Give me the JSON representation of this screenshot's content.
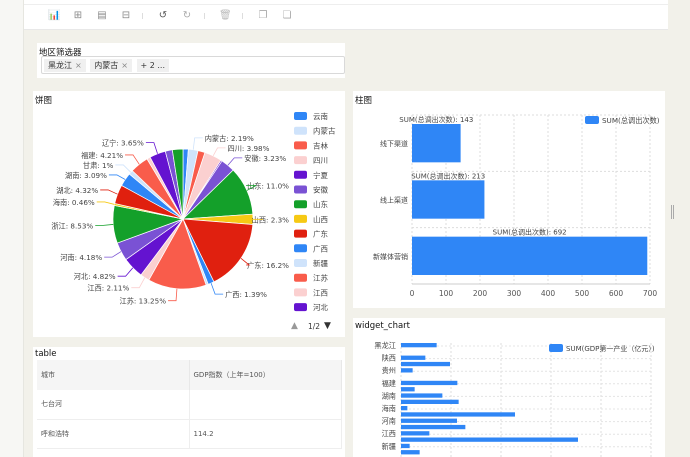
{
  "toolbar": {
    "icons": [
      "bar-chart-icon",
      "add-widget-icon",
      "document-icon",
      "filter-adjust-icon",
      "undo-icon",
      "redo-icon",
      "delete-icon",
      "copy-icon",
      "paste-icon"
    ]
  },
  "filter": {
    "title": "地区筛选器",
    "tags": [
      "黑龙江",
      "内蒙古"
    ],
    "more": "+ 2 ...",
    "remove": "×"
  },
  "pie": {
    "title": "饼图",
    "pager": "1/2",
    "chart_data": {
      "type": "pie",
      "colors": [
        "#2f86f6",
        "#cfe3fb",
        "#f95c4b",
        "#fbd0d0",
        "#6413d0",
        "#7a52d4",
        "#14a02a",
        "#f6c914",
        "#e0200f"
      ],
      "slices": [
        {
          "name": "云南",
          "value": 1.2
        },
        {
          "name": "内蒙古",
          "value": 2.19,
          "label": "内蒙古: 2.19%"
        },
        {
          "name": "吉林",
          "value": 1.6
        },
        {
          "name": "四川",
          "value": 3.98,
          "label": "四川: 3.98%"
        },
        {
          "name": "宁夏",
          "value": 0.3
        },
        {
          "name": "安徽",
          "value": 3.23,
          "label": "安徽: 3.23%"
        },
        {
          "name": "山东",
          "value": 11.0,
          "label": "山东: 11.0%"
        },
        {
          "name": "山西",
          "value": 2.3,
          "label": "山西: 2.3%"
        },
        {
          "name": "广东",
          "value": 16.2,
          "label": "广东: 16.2%"
        },
        {
          "name": "广西",
          "value": 1.39,
          "label": "广西: 1.39%"
        },
        {
          "name": "新疆",
          "value": 0.5
        },
        {
          "name": "江苏",
          "value": 13.25,
          "label": "江苏: 13.25%"
        },
        {
          "name": "江西",
          "value": 2.11,
          "label": "江西: 2.11%"
        },
        {
          "name": "河北",
          "value": 4.82,
          "label": "河北: 4.82%"
        },
        {
          "name": "河南",
          "value": 4.18,
          "label": "河南: 4.18%"
        },
        {
          "name": "浙江",
          "value": 8.53,
          "label": "浙江: 8.53%"
        },
        {
          "name": "海南",
          "value": 0.46,
          "label": "海南: 0.46%"
        },
        {
          "name": "湖北",
          "value": 4.32,
          "label": "湖北: 4.32%"
        },
        {
          "name": "湖南",
          "value": 3.09,
          "label": "湖南: 3.09%"
        },
        {
          "name": "甘肃",
          "value": 1,
          "label": "甘肃: 1%"
        },
        {
          "name": "福建",
          "value": 4.21,
          "label": "福建: 4.21%"
        },
        {
          "name": "贵州",
          "value": 0.8
        },
        {
          "name": "辽宁",
          "value": 3.65,
          "label": "辽宁: 3.65%"
        },
        {
          "name": "重庆",
          "value": 1.6
        },
        {
          "name": "陕西",
          "value": 2.4
        }
      ],
      "legend": [
        "云南",
        "内蒙古",
        "吉林",
        "四川",
        "宁夏",
        "安徽",
        "山东",
        "山西",
        "广东",
        "广西",
        "新疆",
        "江苏",
        "江西",
        "河北"
      ],
      "legend_position": "right"
    }
  },
  "bar": {
    "title": "柱图",
    "chart_data": {
      "type": "bar",
      "orientation": "horizontal",
      "categories": [
        "线下渠道",
        "线上渠道",
        "新媒体营销"
      ],
      "series": [
        {
          "name": "SUM(总调出次数)",
          "values": [
            143,
            213,
            692
          ]
        }
      ],
      "data_label_prefix": "SUM(总调出次数): ",
      "xlim": [
        0,
        700
      ],
      "xticks": [
        0,
        100,
        200,
        300,
        400,
        500,
        600,
        700
      ],
      "grid": true,
      "color": "#2f86f6",
      "legend_position": "top-right"
    }
  },
  "widget": {
    "title": "widget_chart",
    "chart_data": {
      "type": "bar",
      "orientation": "horizontal",
      "categories": [
        "黑龙江",
        "",
        "陕西",
        "",
        "贵州",
        "",
        "福建",
        "",
        "湖南",
        "",
        "海南",
        "",
        "河南",
        "",
        "江西",
        "",
        "新疆",
        ""
      ],
      "series": [
        {
          "name": "SUM(GDP第一产业（亿元）)",
          "values": [
            713,
            0,
            487,
            980,
            233,
            0,
            1127,
            273,
            827,
            1153,
            127,
            2280,
            1120,
            1287,
            567,
            3540,
            173,
            373
          ]
        }
      ],
      "grid": true,
      "color": "#2f86f6",
      "legend_position": "top-right"
    }
  },
  "table": {
    "title": "table",
    "columns": [
      "城市",
      "GDP指数（上年=100）"
    ],
    "rows": [
      [
        "七台河",
        ""
      ],
      [
        "呼和浩特",
        "114.2"
      ]
    ]
  }
}
